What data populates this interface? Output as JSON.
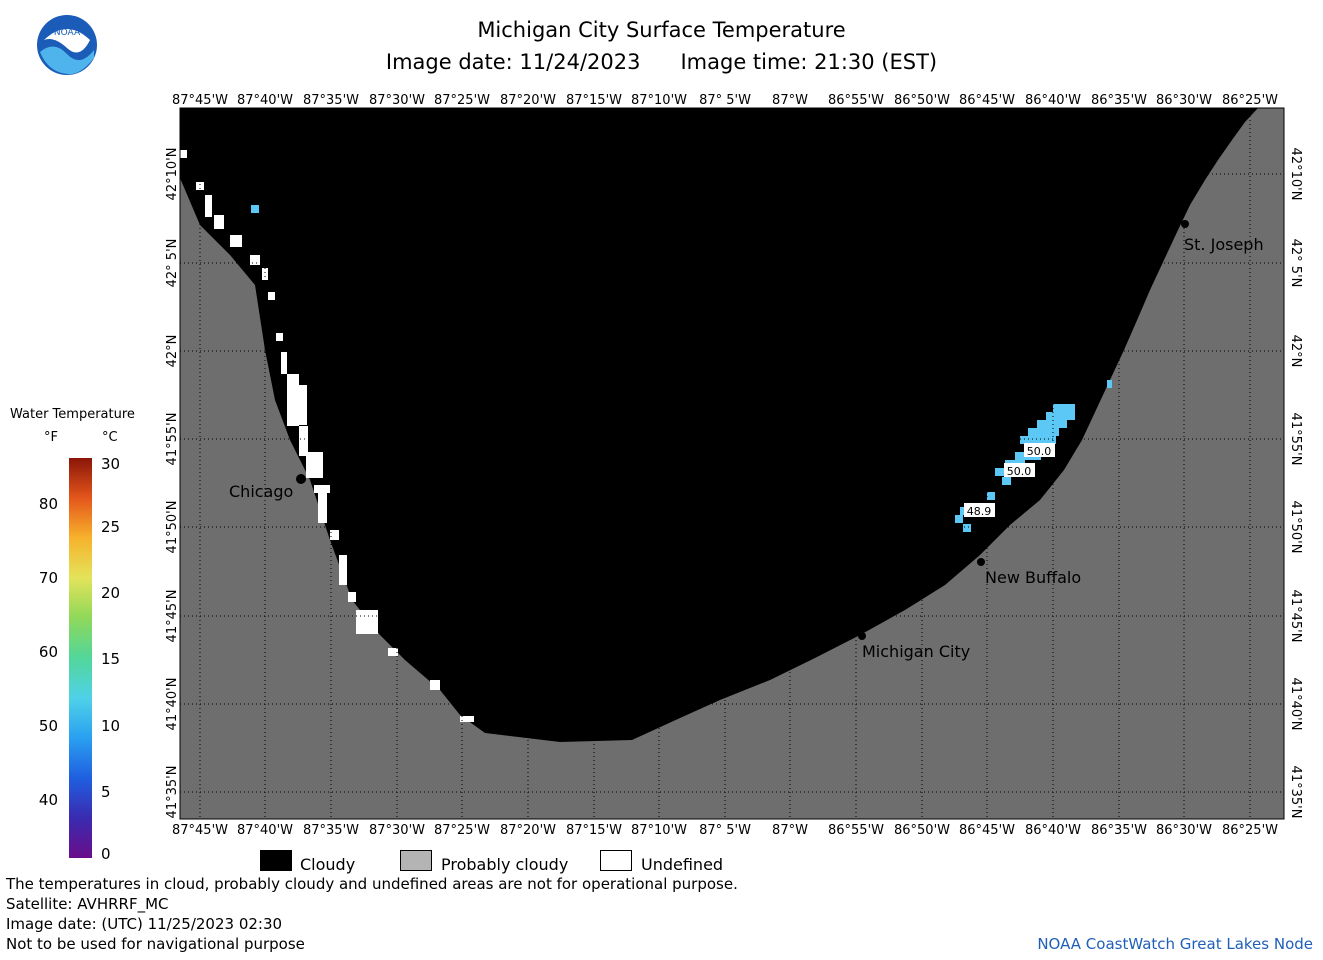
{
  "header": {
    "title": "Michigan City Surface Temperature",
    "image_date": "Image date: 11/24/2023",
    "image_time": "Image time: 21:30 (EST)"
  },
  "logo": {
    "text": "NOAA",
    "icon": "noaa-logo"
  },
  "axes": {
    "longitudes": [
      "87°45'W",
      "87°40'W",
      "87°35'W",
      "87°30'W",
      "87°25'W",
      "87°20'W",
      "87°15'W",
      "87°10'W",
      "87° 5'W",
      "87°W",
      "86°55'W",
      "86°50'W",
      "86°45'W",
      "86°40'W",
      "86°35'W",
      "86°30'W",
      "86°25'W"
    ],
    "latitudes": [
      "42°10'N",
      "42° 5'N",
      "42°N",
      "41°55'N",
      "41°50'N",
      "41°45'N",
      "41°40'N",
      "41°35'N"
    ]
  },
  "places": [
    "Chicago",
    "St. Joseph",
    "New Buffalo",
    "Michigan City"
  ],
  "sst_labels": [
    "50.0",
    "50.0",
    "48.9"
  ],
  "legend": {
    "title": "Water Temperature",
    "unit_f": "°F",
    "unit_c": "°C",
    "ticks_f": [
      "80",
      "70",
      "60",
      "50",
      "40"
    ],
    "ticks_c": [
      "30",
      "25",
      "20",
      "15",
      "10",
      "5",
      "0"
    ]
  },
  "categories": [
    {
      "label": "Cloudy",
      "color": "#000000"
    },
    {
      "label": "Probably cloudy",
      "color": "#b4b4b4"
    },
    {
      "label": "Undefined",
      "color": "#ffffff"
    }
  ],
  "footer": {
    "note": "The temperatures in cloud, probably cloudy and undefined areas are not for operational purpose.",
    "satellite": "Satellite: AVHRRF_MC",
    "utc_date": "Image date: (UTC) 11/25/2023  02:30",
    "nav": "Not to be used for navigational purpose",
    "credit": "NOAA CoastWatch Great Lakes Node"
  },
  "colors": {
    "land": "#6e6e6e",
    "cloud": "#000000",
    "water_sst": "#5bc8f5",
    "credit": "#1f5fb8"
  }
}
